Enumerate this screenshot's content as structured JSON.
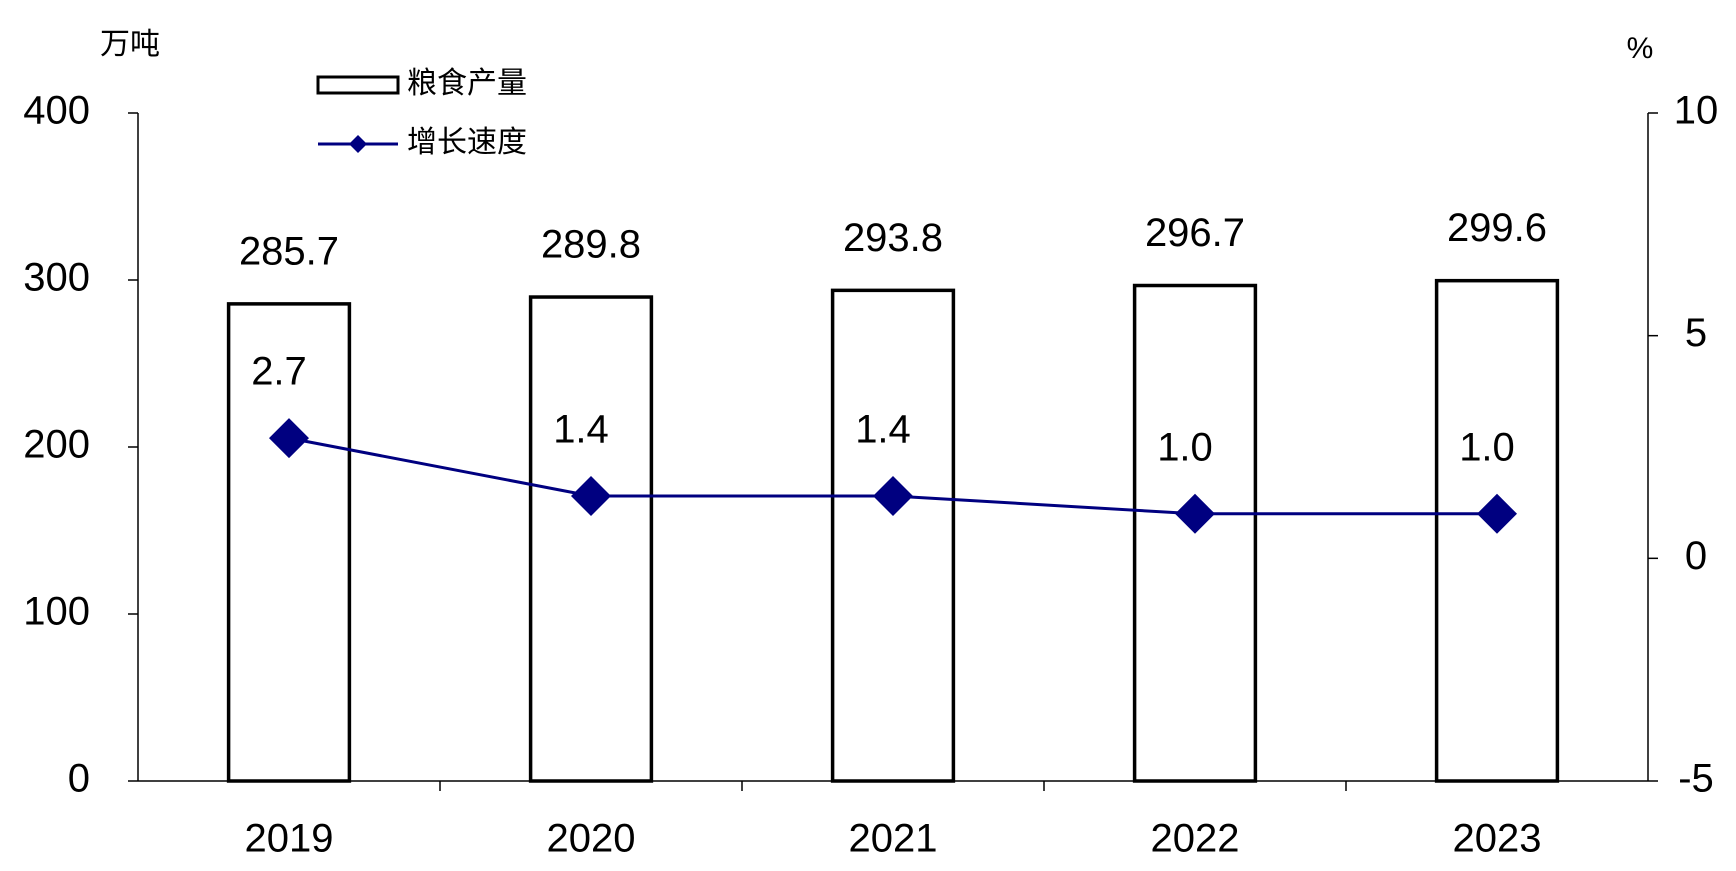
{
  "chart_data": {
    "type": "bar-line",
    "y_label": "万吨",
    "y2_label": "%",
    "categories": [
      "2019",
      "2020",
      "2021",
      "2022",
      "2023"
    ],
    "series": [
      {
        "name": "粮食产量",
        "type": "bar",
        "color": "#ffffff",
        "edge_color": "#000000",
        "values": [
          285.7,
          289.8,
          293.8,
          296.7,
          299.6
        ]
      },
      {
        "name": "增长速度",
        "type": "line",
        "axis": "y2",
        "color": "#000080",
        "values": [
          2.7,
          1.4,
          1.4,
          1.0,
          1.0
        ],
        "value_labels": [
          "2.7",
          "1.4",
          "1.4",
          "1.0",
          "1.0"
        ]
      }
    ],
    "ylim": [
      0,
      400
    ],
    "yticks": [
      0,
      100,
      200,
      300,
      400
    ],
    "y2lim": [
      -5,
      10
    ],
    "y2ticks": [
      -5,
      0,
      5,
      10
    ],
    "grid": false
  }
}
